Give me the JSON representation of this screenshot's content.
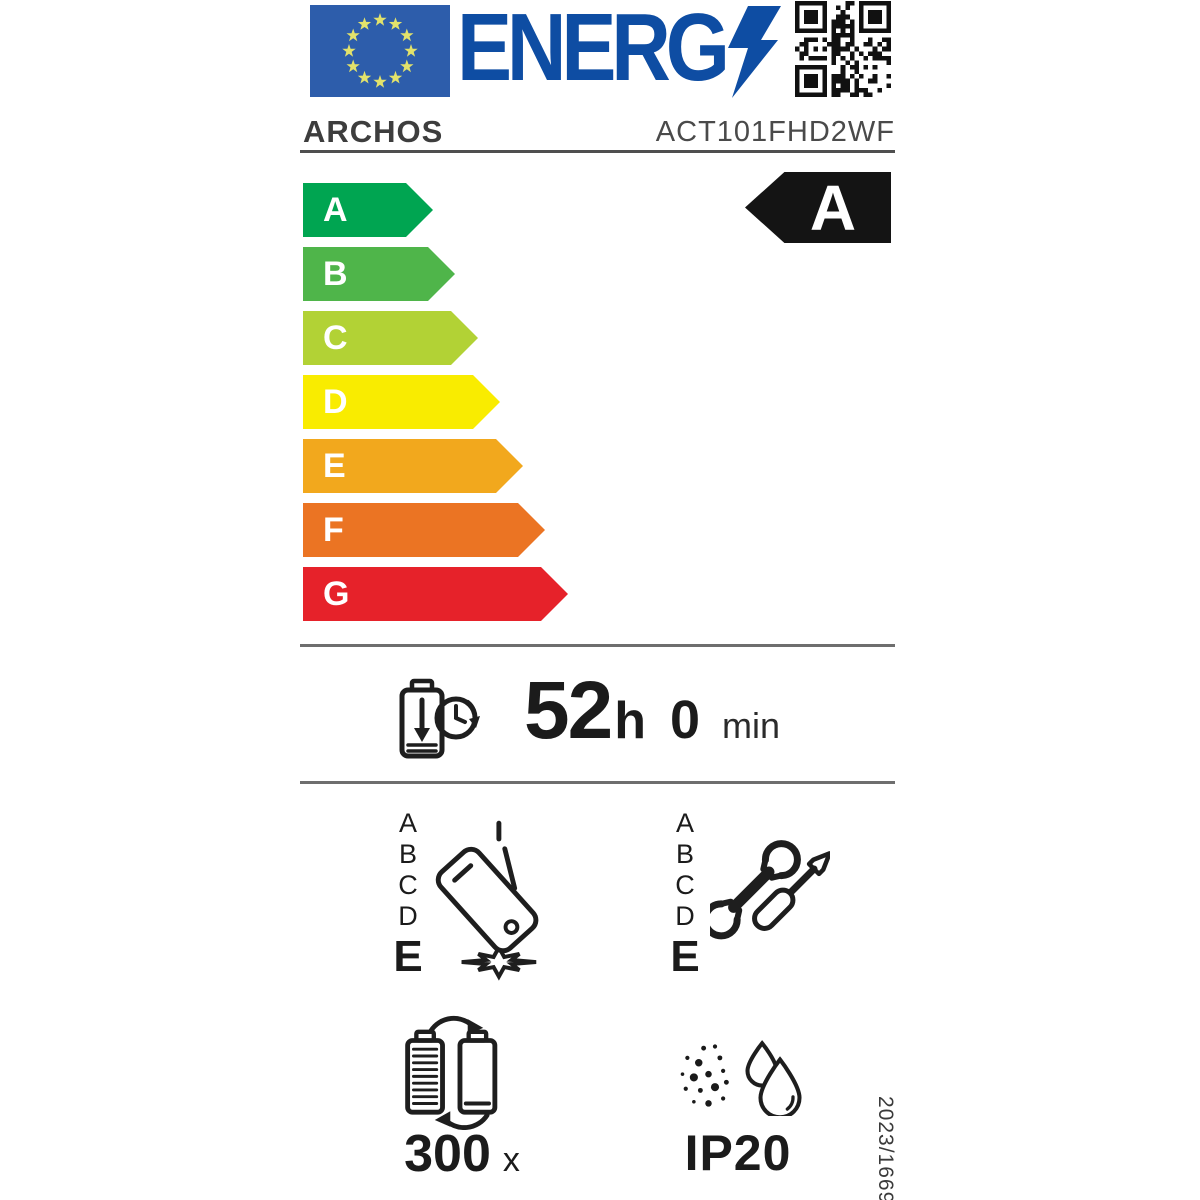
{
  "header": {
    "logo_text": "ENERG",
    "brand": "ARCHOS",
    "model": "ACT101FHD2WF"
  },
  "colors": {
    "eu_flag_blue": "#2d5dab",
    "energy_blue": "#0e4da3",
    "star_yellow": "#e2e26b",
    "rating_arrow": "#141414",
    "ink": "#1b1b1b"
  },
  "energy_scale": {
    "classes": [
      {
        "label": "A",
        "color": "#00a551"
      },
      {
        "label": "B",
        "color": "#4fb54a"
      },
      {
        "label": "C",
        "color": "#b2d235"
      },
      {
        "label": "D",
        "color": "#f9ec00"
      },
      {
        "label": "E",
        "color": "#f2a81d"
      },
      {
        "label": "F",
        "color": "#eb7423"
      },
      {
        "label": "G",
        "color": "#e6222a"
      }
    ],
    "rating": "A"
  },
  "battery_life": {
    "hours": "52",
    "hours_unit": "h",
    "minutes": "0",
    "minutes_unit": "min"
  },
  "drop_resistance": {
    "scale": [
      "A",
      "B",
      "C",
      "D"
    ],
    "rating": "E"
  },
  "repairability": {
    "scale": [
      "A",
      "B",
      "C",
      "D"
    ],
    "rating": "E"
  },
  "battery_cycles": {
    "value": "300",
    "unit": "x"
  },
  "ingress_protection": {
    "value": "IP20"
  },
  "regulation": {
    "number": "2023/1669"
  },
  "icons": {
    "eu-flag-icon": "blue rectangle with circle of 12 stars",
    "lightning-bolt-icon": "lightning bolt forming Y of ENERGY",
    "qr-code": "qr code",
    "battery-clock-icon": "discharging battery with clock",
    "phone-drop-icon": "falling tablet with impact burst",
    "tools-icon": "wrench and screwdriver",
    "battery-cycles-icon": "two batteries with circular arrows",
    "dust-water-icon": "dust particles and water drops"
  }
}
